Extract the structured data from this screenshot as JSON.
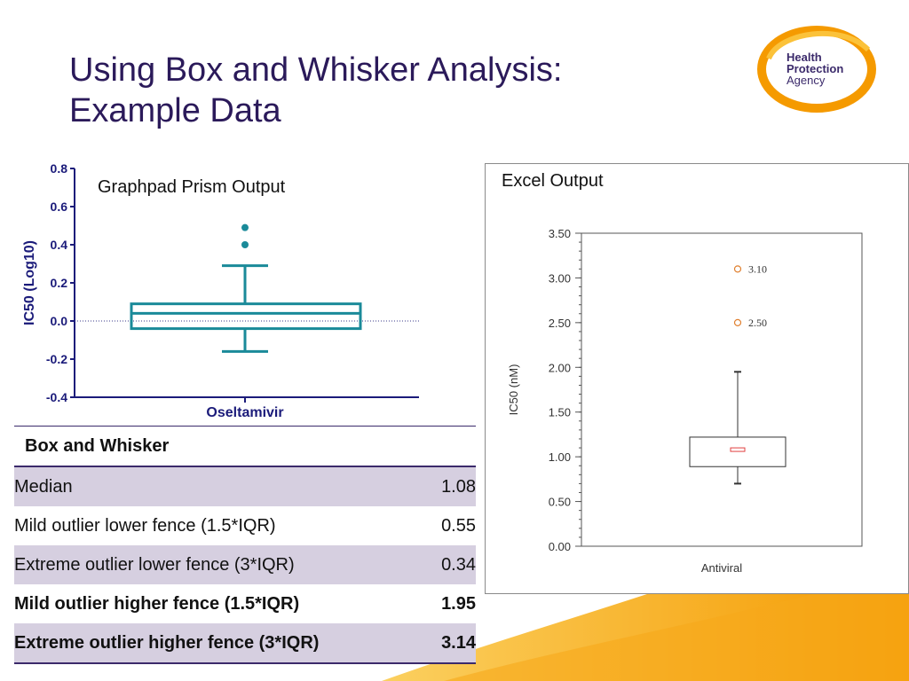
{
  "slide": {
    "title_line1": "Using Box and Whisker Analysis:",
    "title_line2": "Example Data"
  },
  "logo": {
    "line1": "Health",
    "line2": "Protection",
    "line3": "Agency"
  },
  "colors": {
    "title": "#2b1a5a",
    "prism_box": "#1a8a99",
    "prism_axis": "#1b1b7a",
    "excel_median": "#e04040",
    "excel_outlier": "#e08030",
    "table_shade": "#d6cfe0",
    "swoosh": "#f59a00"
  },
  "chart_data": [
    {
      "type": "box",
      "title": "Graphpad Prism Output",
      "ylabel": "IC50 (Log10)",
      "categories": [
        "Oseltamivir"
      ],
      "ylim": [
        -0.4,
        0.8
      ],
      "yticks": [
        "0.8",
        "0.6",
        "0.4",
        "0.2",
        "0.0",
        "-0.2",
        "-0.4"
      ],
      "box": {
        "min": -0.16,
        "q1": -0.04,
        "median": 0.04,
        "q3": 0.09,
        "max": 0.29
      },
      "outliers": [
        0.4,
        0.49
      ],
      "reference_line": 0.0
    },
    {
      "type": "box",
      "title": "Excel Output",
      "ylabel": "IC50 (nM)",
      "xlabel": "Antiviral",
      "ylim": [
        0,
        3.5
      ],
      "yticks": [
        "3.50",
        "3.00",
        "2.50",
        "2.00",
        "1.50",
        "1.00",
        "0.50",
        "0.00"
      ],
      "box": {
        "min": 0.7,
        "q1": 0.89,
        "median": 1.08,
        "q3": 1.22,
        "max": 1.95
      },
      "outliers": [
        {
          "value": 3.1,
          "label": "3.10"
        },
        {
          "value": 2.5,
          "label": "2.50"
        }
      ]
    }
  ],
  "table": {
    "header": "Box and Whisker",
    "rows": [
      {
        "label": "Median",
        "value": "1.08",
        "shade": true,
        "bold": false
      },
      {
        "label": "Mild outlier lower fence (1.5*IQR)",
        "value": "0.55",
        "shade": false,
        "bold": false
      },
      {
        "label": "Extreme outlier lower fence (3*IQR)",
        "value": "0.34",
        "shade": true,
        "bold": false
      },
      {
        "label": "Mild outlier higher fence (1.5*IQR)",
        "value": "1.95",
        "shade": false,
        "bold": true
      },
      {
        "label": "Extreme outlier higher fence (3*IQR)",
        "value": "3.14",
        "shade": true,
        "bold": true
      }
    ]
  }
}
